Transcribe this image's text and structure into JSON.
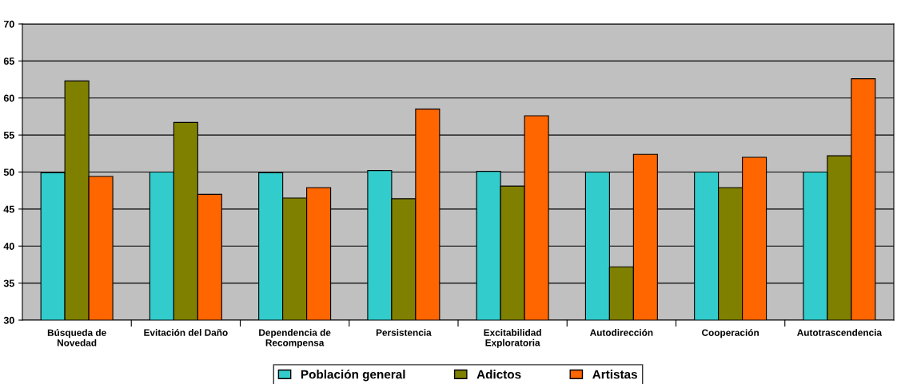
{
  "chart_data": {
    "type": "bar",
    "categories": [
      "Búsqueda de\nNovedad",
      "Evitación del Daño",
      "Dependencia de\nRecompensa",
      "Persistencia",
      "Excitabilidad\nExploratoria",
      "Autodirección",
      "Cooperación",
      "Autotrascendencia"
    ],
    "series": [
      {
        "name": "Población general",
        "color": "#33cccc",
        "values": [
          49.9,
          50.0,
          49.9,
          50.2,
          50.1,
          50.0,
          50.0,
          50.0
        ]
      },
      {
        "name": "Adictos",
        "color": "#808000",
        "values": [
          62.3,
          56.7,
          46.5,
          46.4,
          48.1,
          37.2,
          47.9,
          52.2
        ]
      },
      {
        "name": "Artistas",
        "color": "#ff6600",
        "values": [
          49.4,
          47.0,
          47.9,
          58.5,
          57.6,
          52.4,
          52.0,
          62.6
        ]
      }
    ],
    "ylim": [
      30,
      70
    ],
    "yticks": [
      30,
      35,
      40,
      45,
      50,
      55,
      60,
      65,
      70
    ],
    "grid": "y",
    "legend": "bottom"
  }
}
